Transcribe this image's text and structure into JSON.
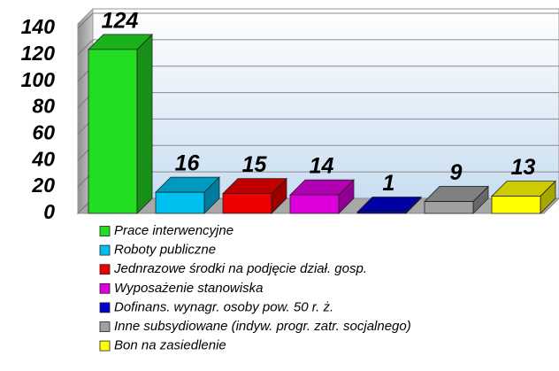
{
  "chart_data": {
    "type": "bar3d",
    "categories": [
      "Prace interwencyjne",
      "Roboty publiczne",
      "Jednrazowe środki na podjęcie dział. gosp.",
      "Wyposażenie stanowiska",
      "Dofinans. wynagr. osoby pow. 50 r. ż.",
      "Inne subsydiowane (indyw. progr. zatr. socjalnego)",
      "Bon na zasiedlenie"
    ],
    "values": [
      124,
      16,
      15,
      14,
      1,
      9,
      13
    ],
    "colors": [
      "#22dd22",
      "#00c0f0",
      "#ee0000",
      "#dd00dd",
      "#0000cc",
      "#a0a0a0",
      "#ffff00"
    ],
    "ylim": [
      0,
      140
    ],
    "yticks": [
      0,
      20,
      40,
      60,
      80,
      100,
      120,
      140
    ],
    "grid": true
  }
}
